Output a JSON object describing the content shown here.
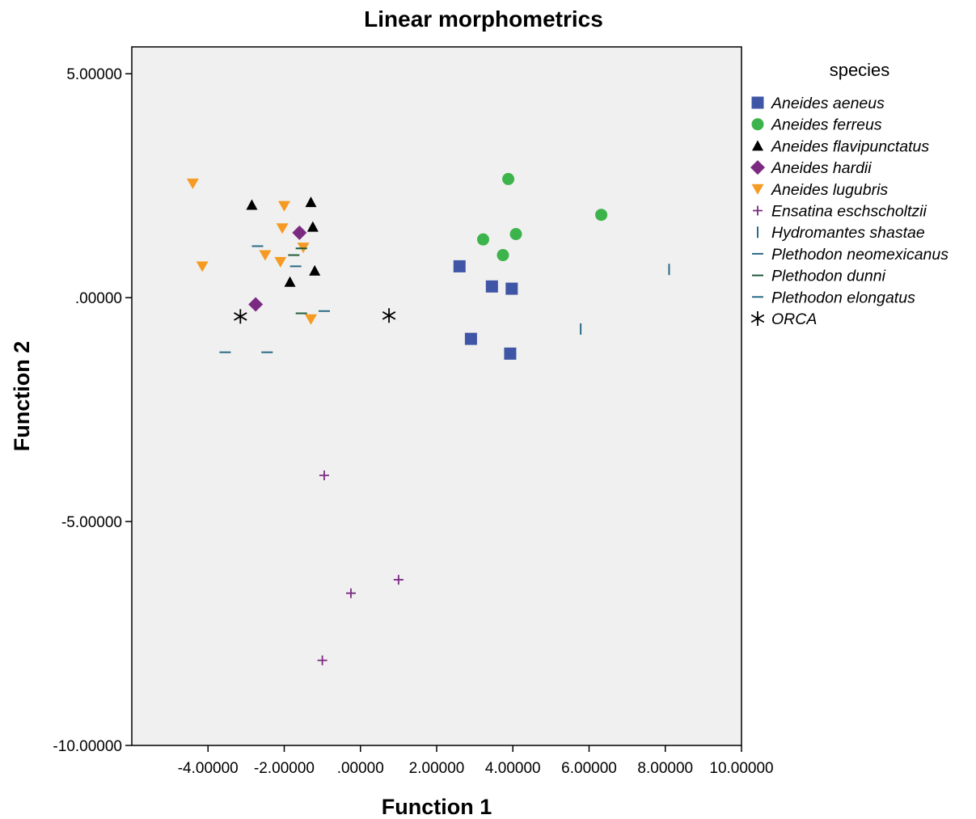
{
  "chart_data": {
    "type": "scatter",
    "title": "Linear morphometrics",
    "xlabel": "Function 1",
    "ylabel": "Function 2",
    "xlim": [
      -6.0,
      10.0
    ],
    "ylim": [
      -10.0,
      5.6
    ],
    "xticks": [
      -4,
      -2,
      0,
      2,
      4,
      6,
      8,
      10
    ],
    "xtick_labels": [
      "-4.00000",
      "-2.00000",
      ".00000",
      "2.00000",
      "4.00000",
      "6.00000",
      "8.00000",
      "10.00000"
    ],
    "yticks": [
      5,
      0,
      -5,
      -10
    ],
    "ytick_labels": [
      "5.00000",
      ".00000",
      "-5.00000",
      "-10.00000"
    ],
    "grid": false,
    "legend_title": "species",
    "legend_position": "right",
    "plot_background": "#f0f0f0",
    "series": [
      {
        "name": "Aneides aeneus",
        "marker": "square",
        "color": "#3f55a6",
        "x": [
          2.6,
          3.45,
          3.97,
          2.9,
          3.93
        ],
        "y": [
          0.7,
          0.25,
          0.2,
          -0.92,
          -1.25
        ]
      },
      {
        "name": "Aneides ferreus",
        "marker": "circle",
        "color": "#3cb44b",
        "x": [
          3.88,
          6.32,
          3.22,
          4.08,
          3.74
        ],
        "y": [
          2.65,
          1.85,
          1.3,
          1.42,
          0.95
        ]
      },
      {
        "name": "Aneides flavipunctatus",
        "marker": "triangle-up",
        "color": "#000000",
        "x": [
          -2.85,
          -1.3,
          -1.25,
          -1.85,
          -1.2
        ],
        "y": [
          2.07,
          2.13,
          1.58,
          0.35,
          0.6
        ]
      },
      {
        "name": "Aneides hardii",
        "marker": "diamond",
        "color": "#7b2a82",
        "x": [
          -1.6,
          -2.75
        ],
        "y": [
          1.45,
          -0.15
        ]
      },
      {
        "name": "Aneides lugubris",
        "marker": "triangle-down",
        "color": "#f59a23",
        "x": [
          -4.4,
          -2.0,
          -2.05,
          -2.5,
          -4.15,
          -2.1,
          -1.5,
          -1.3
        ],
        "y": [
          2.55,
          2.05,
          1.55,
          0.95,
          0.7,
          0.8,
          1.12,
          -0.48
        ]
      },
      {
        "name": "Ensatina eschscholtzii",
        "marker": "plus",
        "color": "#7b2a82",
        "x": [
          -0.95,
          1.0,
          -0.25,
          -1.0
        ],
        "y": [
          -3.97,
          -6.3,
          -6.6,
          -8.1
        ]
      },
      {
        "name": "Hydromantes shastae",
        "marker": "vline",
        "color": "#2a6a86",
        "x": [
          8.1,
          5.78
        ],
        "y": [
          0.63,
          -0.7
        ]
      },
      {
        "name": "Plethodon neomexicanus",
        "marker": "hline",
        "color": "#2a6a86",
        "x": [
          -2.7,
          -3.55,
          -2.45
        ],
        "y": [
          1.15,
          -1.22,
          -1.22
        ]
      },
      {
        "name": "Plethodon dunni",
        "marker": "hline",
        "color": "#1f5a3a",
        "x": [
          -1.55,
          -1.75,
          -1.55
        ],
        "y": [
          1.1,
          0.95,
          -0.35
        ]
      },
      {
        "name": "Plethodon elongatus",
        "marker": "hline",
        "color": "#2a6a86",
        "x": [
          -1.7,
          -0.95
        ],
        "y": [
          0.7,
          -0.3
        ]
      },
      {
        "name": "ORCA",
        "marker": "asterisk",
        "color": "#000000",
        "x": [
          -3.15,
          0.75
        ],
        "y": [
          -0.42,
          -0.4
        ]
      }
    ]
  }
}
